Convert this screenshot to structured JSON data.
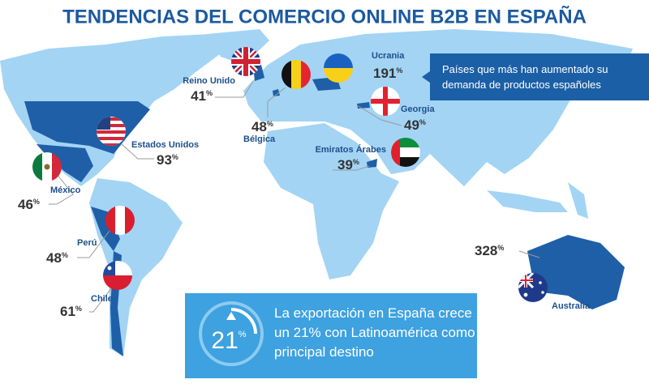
{
  "title": "TENDENCIAS DEL COMERCIO ONLINE B2B EN ESPAÑA",
  "note": {
    "lines": [
      "Países que más han aumentado su",
      "demanda de productos españoles"
    ]
  },
  "countries": [
    {
      "name": "Reino Unido",
      "value": "41",
      "unit": "%"
    },
    {
      "name": "Bélgica",
      "value": "48",
      "unit": "%"
    },
    {
      "name": "Ucrania",
      "value": "191",
      "unit": "%"
    },
    {
      "name": "Georgia",
      "value": "49",
      "unit": "%"
    },
    {
      "name": "Emiratos Árabes",
      "value": "39",
      "unit": "%"
    },
    {
      "name": "Estados Unidos",
      "value": "93",
      "unit": "%"
    },
    {
      "name": "México",
      "value": "46",
      "unit": "%"
    },
    {
      "name": "Perú",
      "value": "48",
      "unit": "%"
    },
    {
      "name": "Chile",
      "value": "61",
      "unit": "%"
    },
    {
      "name": "Australia",
      "value": "328",
      "unit": "%"
    }
  ],
  "callout": {
    "value": "21",
    "unit": "%",
    "lines": [
      "La exportación en España crece",
      "un 21% con Latinoamérica como",
      "principal destino"
    ]
  }
}
